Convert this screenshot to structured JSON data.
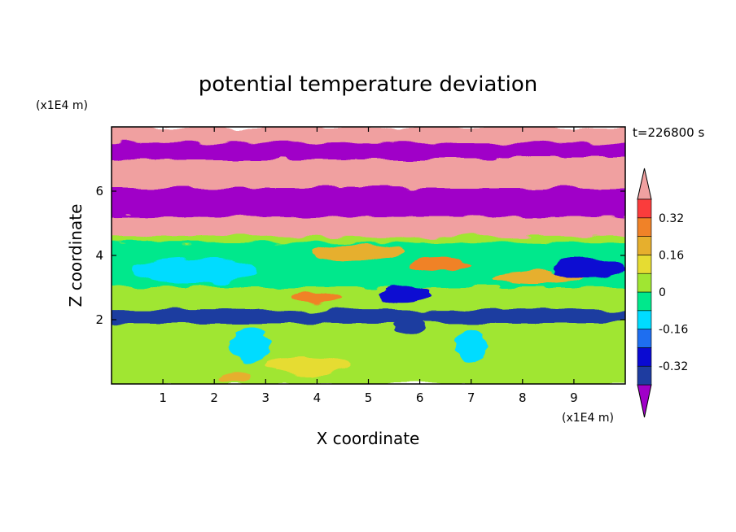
{
  "chart_data": {
    "type": "heatmap",
    "title": "potential temperature deviation",
    "xlabel": "X coordinate",
    "ylabel": "Z coordinate",
    "x_unit": "(x1E4 m)",
    "y_unit": "(x1E4 m)",
    "time_label": "t=226800 s",
    "xlim": [
      0,
      10
    ],
    "ylim": [
      0,
      8
    ],
    "x_ticks": [
      "1",
      "2",
      "3",
      "4",
      "5",
      "6",
      "7",
      "8",
      "9"
    ],
    "y_ticks": [
      "2",
      "4",
      "6"
    ],
    "colorbar": {
      "labels": [
        "0.32",
        "0.16",
        "0",
        "-0.16",
        "-0.32"
      ],
      "label_levels": [
        0.32,
        0.16,
        0,
        -0.16,
        -0.32
      ],
      "levels_min": -0.4,
      "levels_step": 0.08,
      "colors": [
        "#a000c8",
        "#1e3ca0",
        "#0a0ad2",
        "#1e6ef0",
        "#00dcff",
        "#00e88c",
        "#a0e632",
        "#e6dc32",
        "#e6af2d",
        "#f08228",
        "#fa3c3c",
        "#f0a0a0"
      ]
    },
    "bands": [
      {
        "y0": 7.5,
        "y1": 8.0,
        "value": 0.45
      },
      {
        "y0": 7.0,
        "y1": 7.5,
        "value": -0.45
      },
      {
        "y0": 6.1,
        "y1": 7.0,
        "value": 0.45
      },
      {
        "y0": 5.2,
        "y1": 6.1,
        "value": -0.45
      },
      {
        "y0": 4.6,
        "y1": 5.2,
        "value": 0.45
      },
      {
        "y0": 4.4,
        "y1": 4.6,
        "value": 0.05
      },
      {
        "y0": 3.0,
        "y1": 4.4,
        "value": -0.05
      },
      {
        "y0": 2.3,
        "y1": 3.0,
        "value": 0.02
      },
      {
        "y0": 1.9,
        "y1": 2.3,
        "value": -0.4
      },
      {
        "y0": 0.0,
        "y1": 1.9,
        "value": 0.03
      }
    ],
    "features": [
      {
        "x": 4.8,
        "z": 4.1,
        "rx": 0.9,
        "rz": 0.25,
        "value": 0.2
      },
      {
        "x": 6.4,
        "z": 3.7,
        "rx": 0.6,
        "rz": 0.2,
        "value": 0.24
      },
      {
        "x": 8.3,
        "z": 3.3,
        "rx": 0.9,
        "rz": 0.2,
        "value": 0.2
      },
      {
        "x": 5.7,
        "z": 2.8,
        "rx": 0.5,
        "rz": 0.25,
        "value": -0.3
      },
      {
        "x": 4.0,
        "z": 2.7,
        "rx": 0.5,
        "rz": 0.2,
        "value": 0.25
      },
      {
        "x": 1.6,
        "z": 3.5,
        "rx": 1.2,
        "rz": 0.4,
        "value": -0.1
      },
      {
        "x": 9.3,
        "z": 3.6,
        "rx": 0.7,
        "rz": 0.3,
        "value": -0.25
      },
      {
        "x": 5.8,
        "z": 1.8,
        "rx": 0.3,
        "rz": 0.2,
        "value": -0.4
      },
      {
        "x": 2.7,
        "z": 1.2,
        "rx": 0.4,
        "rz": 0.5,
        "value": -0.15
      },
      {
        "x": 7.0,
        "z": 1.2,
        "rx": 0.3,
        "rz": 0.5,
        "value": -0.15
      },
      {
        "x": 3.8,
        "z": 0.6,
        "rx": 0.8,
        "rz": 0.3,
        "value": 0.1
      },
      {
        "x": 2.4,
        "z": 0.2,
        "rx": 0.3,
        "rz": 0.15,
        "value": 0.2
      }
    ]
  }
}
